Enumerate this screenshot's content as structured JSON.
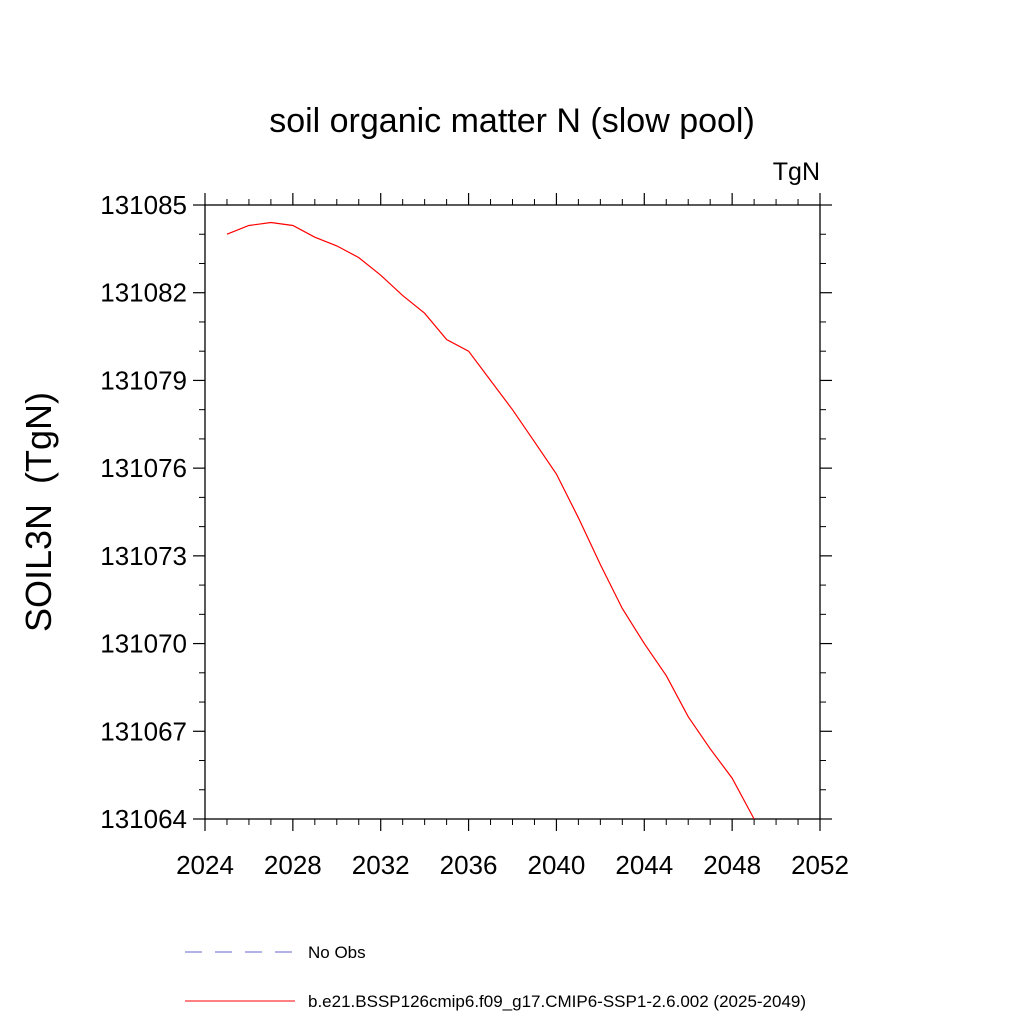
{
  "chart_data": {
    "type": "line",
    "title": "soil organic matter N (slow pool)",
    "units": "TgN",
    "ylabel": "SOIL3N  (TgN)",
    "xlabel": "",
    "xlim": [
      2024,
      2052
    ],
    "ylim": [
      131064,
      131085
    ],
    "x_ticks": [
      2024,
      2028,
      2032,
      2036,
      2040,
      2044,
      2048,
      2052
    ],
    "y_ticks": [
      131064,
      131067,
      131070,
      131073,
      131076,
      131079,
      131082,
      131085
    ],
    "x_tick_labels": [
      "2024",
      "2028",
      "2032",
      "2036",
      "2040",
      "2044",
      "2048",
      "2052"
    ],
    "y_tick_labels": [
      "131064",
      "131067",
      "131070",
      "131073",
      "131076",
      "131079",
      "131082",
      "131085"
    ],
    "grid": false,
    "legend_position": "bottom",
    "series": [
      {
        "name": "b.e21.BSSP126cmip6.f09_g17.CMIP6-SSP1-2.6.002 (2025-2049)",
        "color": "#ff0000",
        "style": "solid",
        "x": [
          2025,
          2026,
          2027,
          2028,
          2029,
          2030,
          2031,
          2032,
          2033,
          2034,
          2035,
          2036,
          2037,
          2038,
          2039,
          2040,
          2041,
          2042,
          2043,
          2044,
          2045,
          2046,
          2047,
          2048,
          2049
        ],
        "y": [
          131084.0,
          131084.3,
          131084.4,
          131084.3,
          131083.9,
          131083.6,
          131083.2,
          131082.6,
          131081.9,
          131081.3,
          131080.4,
          131080.0,
          131079.0,
          131078.0,
          131076.9,
          131075.8,
          131074.3,
          131072.7,
          131071.2,
          131070.0,
          131068.9,
          131067.5,
          131066.4,
          131065.4,
          131064.0
        ]
      }
    ],
    "legend": [
      {
        "label": "No Obs",
        "color": "#6666cc",
        "style": "dashed"
      },
      {
        "label": "b.e21.BSSP126cmip6.f09_g17.CMIP6-SSP1-2.6.002 (2025-2049)",
        "color": "#ff0000",
        "style": "solid"
      }
    ]
  }
}
